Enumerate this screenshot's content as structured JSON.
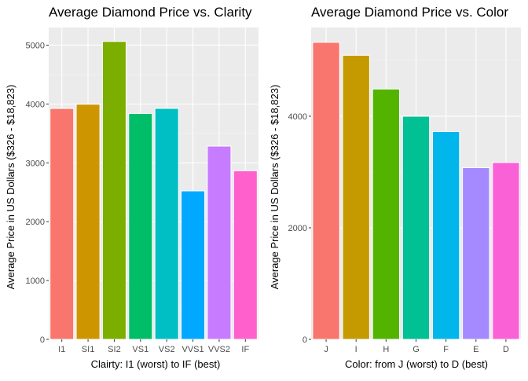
{
  "chart_data": [
    {
      "type": "bar",
      "title": "Average Diamond Price vs. Clarity",
      "xlabel": "Clairty: I1 (worst) to IF (best)",
      "ylabel": "Average Price in US Dollars ($326 - $18,823)",
      "categories": [
        "I1",
        "SI1",
        "SI2",
        "VS1",
        "VS2",
        "VVS1",
        "VVS2",
        "IF"
      ],
      "values": [
        3924,
        3996,
        5063,
        3839,
        3925,
        2523,
        3284,
        2865
      ],
      "colors": [
        "#F8766D",
        "#CD9600",
        "#7CAE00",
        "#00BE67",
        "#00BFC4",
        "#00A9FF",
        "#C77CFF",
        "#FF61CC"
      ],
      "ylim": [
        0,
        5300
      ],
      "yticks": [
        0,
        1000,
        2000,
        3000,
        4000,
        5000
      ],
      "grid": true,
      "legend": "none",
      "background": "#EBEBEB"
    },
    {
      "type": "bar",
      "title": "Average Diamond Price vs. Color",
      "xlabel": "Color: from J (worst) to D (best)",
      "ylabel": "Average Price in US Dollars ($326 - $18,823)",
      "categories": [
        "J",
        "I",
        "H",
        "G",
        "F",
        "E",
        "D"
      ],
      "values": [
        5324,
        5092,
        4487,
        3999,
        3725,
        3077,
        3170
      ],
      "colors": [
        "#F8766D",
        "#C49A00",
        "#53B400",
        "#00C094",
        "#00B6EB",
        "#A58AFF",
        "#FB61D7"
      ],
      "ylim": [
        0,
        5590
      ],
      "yticks": [
        0,
        2000,
        4000
      ],
      "grid": true,
      "legend": "none",
      "background": "#EBEBEB"
    }
  ]
}
